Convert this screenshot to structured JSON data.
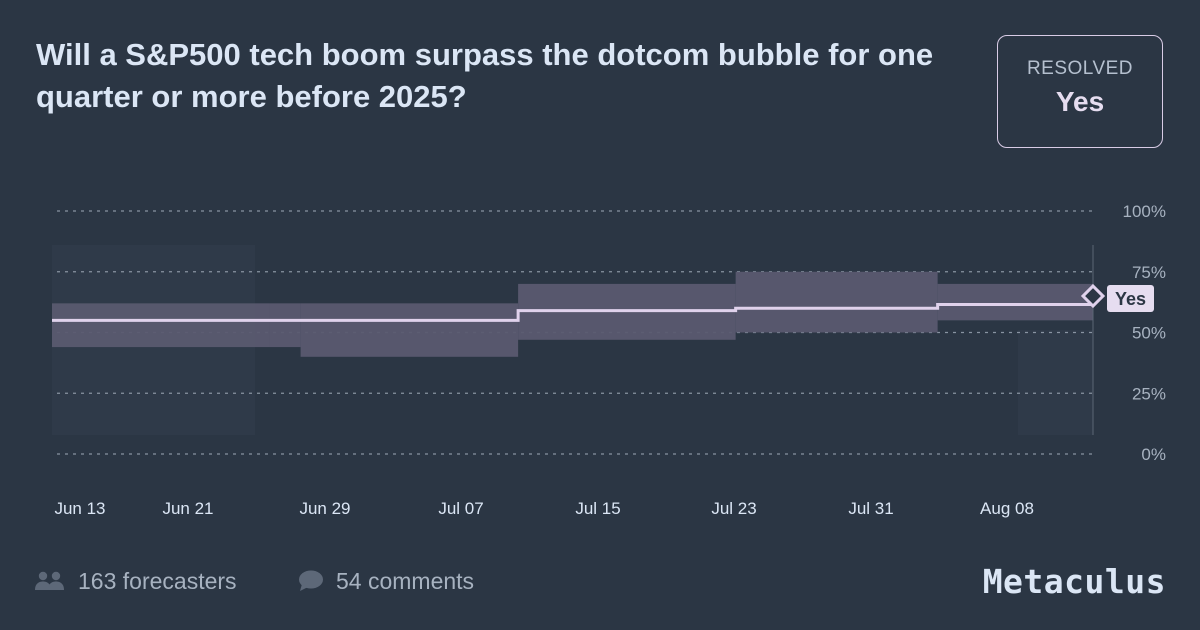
{
  "question": {
    "title": "Will a S&P500 tech boom surpass the dotcom bubble for one quarter or more before 2025?"
  },
  "status": {
    "label": "RESOLVED",
    "value": "Yes"
  },
  "chart_data": {
    "type": "line",
    "x": [
      "2023-06-10",
      "2023-07-10",
      "2023-07-10",
      "2023-08-06",
      "2023-08-06",
      "2023-08-16"
    ],
    "ylim": [
      0,
      100
    ],
    "yticks": [
      "100%",
      "75%",
      "50%",
      "25%",
      "0%"
    ],
    "xticks": [
      "Jun 13",
      "Jun 21",
      "Jun 29",
      "Jul 07",
      "Jul 15",
      "Jul 23",
      "Jul 31",
      "Aug 08"
    ],
    "series": [
      {
        "median": [
          {
            "x": "2023-06-10",
            "y": 55
          },
          {
            "x": "2023-07-10",
            "y": 55
          },
          {
            "x": "2023-07-10",
            "y": 59
          },
          {
            "x": "2023-07-24",
            "y": 59
          },
          {
            "x": "2023-07-24",
            "y": 60
          },
          {
            "x": "2023-08-06",
            "y": 60
          },
          {
            "x": "2023-08-06",
            "y": 61.5
          },
          {
            "x": "2023-08-16",
            "y": 61.5
          }
        ],
        "interval": [
          {
            "start": "2023-06-10",
            "end": "2023-06-24",
            "low": 44,
            "high": 62
          },
          {
            "start": "2023-06-24",
            "end": "2023-06-26",
            "low": 44,
            "high": 62
          },
          {
            "start": "2023-06-26",
            "end": "2023-07-10",
            "low": 40,
            "high": 62
          },
          {
            "start": "2023-07-10",
            "end": "2023-07-24",
            "low": 47,
            "high": 70
          },
          {
            "start": "2023-07-24",
            "end": "2023-08-06",
            "low": 50,
            "high": 75
          },
          {
            "start": "2023-08-06",
            "end": "2023-08-16",
            "low": 55,
            "high": 70
          }
        ]
      }
    ],
    "resolution_label": "Yes",
    "resolution_value": 65
  },
  "footer": {
    "forecasters": "163 forecasters",
    "comments": "54 comments",
    "brand": "Metaculus"
  },
  "colors": {
    "background": "#2b3644",
    "band": "#5a5a70",
    "median": "#e0d2ec",
    "grid": "#a7b2c0",
    "text": "#dbe6f5"
  },
  "icons": {
    "forecasters": "people-icon",
    "comments": "speech-bubble-icon"
  }
}
